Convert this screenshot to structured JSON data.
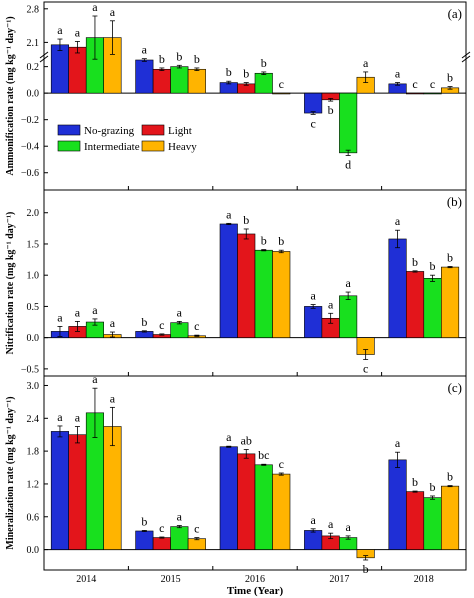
{
  "chart_data": [
    {
      "panel_label": "(a)",
      "type": "bar",
      "ylabel": "Ammonification rate (mg kg⁻¹ day⁻¹)",
      "categories": [
        "2014",
        "2015",
        "2016",
        "2017",
        "2018"
      ],
      "series": [
        {
          "name": "No-grazing",
          "color": "#1f2fd6",
          "values": [
            2.05,
            0.25,
            0.08,
            -0.15,
            0.07
          ],
          "errors": [
            0.12,
            0.01,
            0.01,
            0.01,
            0.01
          ],
          "letters": [
            "a",
            "a",
            "b",
            "c",
            "a"
          ]
        },
        {
          "name": "Light",
          "color": "#e3151b",
          "values": [
            2.0,
            0.18,
            0.07,
            -0.05,
            0.0
          ],
          "errors": [
            0.12,
            0.01,
            0.01,
            0.01,
            0.0
          ],
          "letters": [
            "a",
            "b",
            "b",
            "b",
            "c"
          ]
        },
        {
          "name": "Intermediate",
          "color": "#18e01e",
          "values": [
            2.2,
            0.2,
            0.15,
            -0.45,
            0.0
          ],
          "errors": [
            0.45,
            0.01,
            0.01,
            0.02,
            0.0
          ],
          "letters": [
            "a",
            "b",
            "b",
            "d",
            "c"
          ]
        },
        {
          "name": "Heavy",
          "color": "#ffb400",
          "values": [
            2.2,
            0.18,
            0.0,
            0.12,
            0.04
          ],
          "errors": [
            0.35,
            0.01,
            0.0,
            0.04,
            0.01
          ],
          "letters": [
            "a",
            "b",
            "c",
            "a",
            "b"
          ]
        }
      ],
      "y_axis_break": [
        0.3,
        1.9
      ],
      "ylim": [
        -0.7,
        2.9
      ],
      "yticks": [
        -0.6,
        -0.4,
        -0.2,
        0.0,
        0.2,
        2.1,
        2.8
      ],
      "legend": {
        "position": "lower-left",
        "entries": [
          "No-grazing",
          "Light",
          "Intermediate",
          "Heavy"
        ]
      }
    },
    {
      "panel_label": "(b)",
      "type": "bar",
      "ylabel": "Nitrification  rate (mg kg⁻¹ day⁻¹)",
      "categories": [
        "2014",
        "2015",
        "2016",
        "2017",
        "2018"
      ],
      "series": [
        {
          "name": "No-grazing",
          "color": "#1f2fd6",
          "values": [
            0.1,
            0.1,
            1.82,
            0.5,
            1.58
          ],
          "errors": [
            0.08,
            0.01,
            0.01,
            0.03,
            0.14
          ],
          "letters": [
            "a",
            "b",
            "a",
            "a",
            "a"
          ]
        },
        {
          "name": "Light",
          "color": "#e3151b",
          "values": [
            0.18,
            0.05,
            1.66,
            0.31,
            1.06
          ],
          "errors": [
            0.08,
            0.01,
            0.08,
            0.08,
            0.01
          ],
          "letters": [
            "a",
            "c",
            "b",
            "a",
            "b"
          ]
        },
        {
          "name": "Intermediate",
          "color": "#18e01e",
          "values": [
            0.25,
            0.24,
            1.4,
            0.67,
            0.95
          ],
          "errors": [
            0.05,
            0.02,
            0.01,
            0.06,
            0.05
          ],
          "letters": [
            "a",
            "a",
            "b",
            "a",
            "b"
          ]
        },
        {
          "name": "Heavy",
          "color": "#ffb400",
          "values": [
            0.05,
            0.03,
            1.38,
            -0.27,
            1.13
          ],
          "errors": [
            0.04,
            0.01,
            0.02,
            0.08,
            0.01
          ],
          "letters": [
            "a",
            "c",
            "b",
            "c",
            "b"
          ]
        }
      ],
      "ylim": [
        -0.55,
        2.3
      ],
      "yticks": [
        -0.5,
        0.0,
        0.5,
        1.0,
        1.5,
        2.0
      ]
    },
    {
      "panel_label": "(c)",
      "type": "bar",
      "ylabel": "Mineralization  rate (mg kg⁻¹ day⁻¹)",
      "xlabel": "Time (Year)",
      "categories": [
        "2014",
        "2015",
        "2016",
        "2017",
        "2018"
      ],
      "series": [
        {
          "name": "No-grazing",
          "color": "#1f2fd6",
          "values": [
            2.16,
            0.34,
            1.88,
            0.35,
            1.64
          ],
          "errors": [
            0.1,
            0.01,
            0.01,
            0.03,
            0.14
          ],
          "letters": [
            "a",
            "b",
            "a",
            "a",
            "a"
          ]
        },
        {
          "name": "Light",
          "color": "#e3151b",
          "values": [
            2.1,
            0.22,
            1.75,
            0.25,
            1.06
          ],
          "errors": [
            0.15,
            0.01,
            0.08,
            0.05,
            0.01
          ],
          "letters": [
            "a",
            "c",
            "ab",
            "a",
            "b"
          ]
        },
        {
          "name": "Intermediate",
          "color": "#18e01e",
          "values": [
            2.5,
            0.42,
            1.55,
            0.22,
            0.95
          ],
          "errors": [
            0.45,
            0.02,
            0.01,
            0.03,
            0.03
          ],
          "letters": [
            "a",
            "a",
            "bc",
            "a",
            "b"
          ]
        },
        {
          "name": "Heavy",
          "color": "#ffb400",
          "values": [
            2.25,
            0.2,
            1.38,
            -0.15,
            1.16
          ],
          "errors": [
            0.35,
            0.02,
            0.02,
            0.04,
            0.01
          ],
          "letters": [
            "a",
            "c",
            "c",
            "b",
            "b"
          ]
        }
      ],
      "ylim": [
        -0.3,
        3.1
      ],
      "yticks": [
        0.0,
        0.6,
        1.2,
        1.8,
        2.4,
        3.0
      ]
    }
  ]
}
